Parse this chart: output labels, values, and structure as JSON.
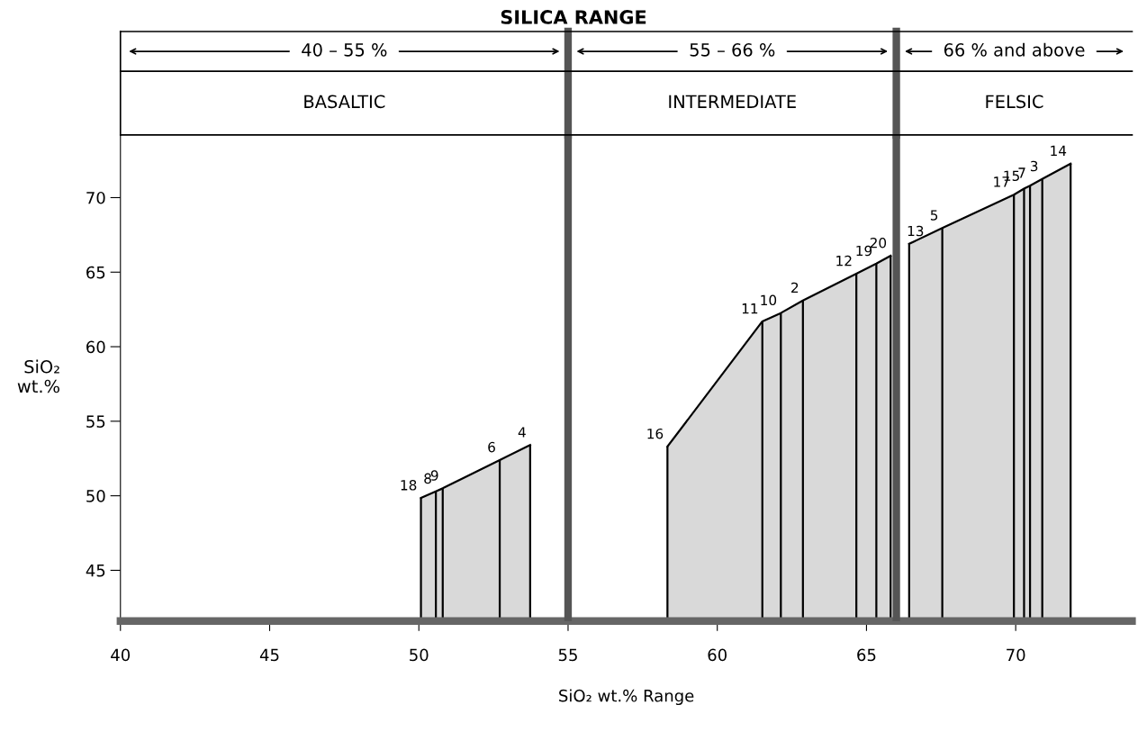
{
  "chart_data": {
    "type": "area",
    "title": "SILICA RANGE",
    "xlabel": "SiO₂ wt.% Range",
    "ylabel": "SiO₂\nwt.%",
    "xlim": [
      40,
      73.9
    ],
    "ylim": [
      41.6,
      74.2
    ],
    "xticks": [
      40,
      45,
      50,
      55,
      60,
      65,
      70
    ],
    "yticks": [
      45,
      50,
      55,
      60,
      65,
      70
    ],
    "series": [
      {
        "color": "#d9d9d9",
        "x": [
          50.07,
          50.57,
          50.8,
          52.71,
          53.73,
          null,
          58.33,
          61.51,
          62.13,
          62.87,
          64.66,
          65.33,
          65.81,
          null,
          66.43,
          67.54,
          69.94,
          70.28,
          70.48,
          70.89,
          71.84
        ],
        "values": [
          49.85,
          50.3,
          50.5,
          52.4,
          53.4,
          null,
          53.3,
          61.7,
          62.26,
          63.1,
          64.9,
          65.57,
          66.1,
          null,
          66.9,
          67.96,
          70.2,
          70.6,
          70.8,
          71.25,
          72.28
        ]
      }
    ],
    "ref_lines": [
      {
        "axis": "x",
        "value": 55,
        "color": "#555555"
      },
      {
        "axis": "x",
        "value": 66,
        "color": "#555555"
      }
    ],
    "annotations": [
      "40 – 55 %",
      "55 – 66 %",
      "66 % and above",
      "BASALTIC",
      "INTERMEDIATE",
      "FELSIC",
      {
        "text": "18",
        "x": 50.07,
        "y": 49.85
      },
      {
        "text": "8",
        "x": 50.57,
        "y": 50.3
      },
      {
        "text": "9",
        "x": 50.8,
        "y": 50.5
      },
      {
        "text": "6",
        "x": 52.71,
        "y": 52.4
      },
      {
        "text": "4",
        "x": 53.73,
        "y": 53.4
      },
      {
        "text": "16",
        "x": 58.33,
        "y": 53.3
      },
      {
        "text": "11",
        "x": 61.51,
        "y": 61.7
      },
      {
        "text": "10",
        "x": 62.13,
        "y": 62.26
      },
      {
        "text": "2",
        "x": 62.87,
        "y": 63.1
      },
      {
        "text": "12",
        "x": 64.66,
        "y": 64.9
      },
      {
        "text": "19",
        "x": 65.33,
        "y": 65.57
      },
      {
        "text": "20",
        "x": 65.81,
        "y": 66.1
      },
      {
        "text": "13",
        "x": 66.43,
        "y": 66.9
      },
      {
        "text": "5",
        "x": 67.54,
        "y": 67.96
      },
      {
        "text": "17",
        "x": 69.94,
        "y": 70.2
      },
      {
        "text": "15",
        "x": 70.28,
        "y": 70.6
      },
      {
        "text": "7",
        "x": 70.48,
        "y": 70.8
      },
      {
        "text": "3",
        "x": 70.89,
        "y": 71.25
      },
      {
        "text": "14",
        "x": 71.84,
        "y": 72.28
      }
    ],
    "grid": false,
    "legend": false,
    "marker": "none",
    "line_style": "solid"
  }
}
